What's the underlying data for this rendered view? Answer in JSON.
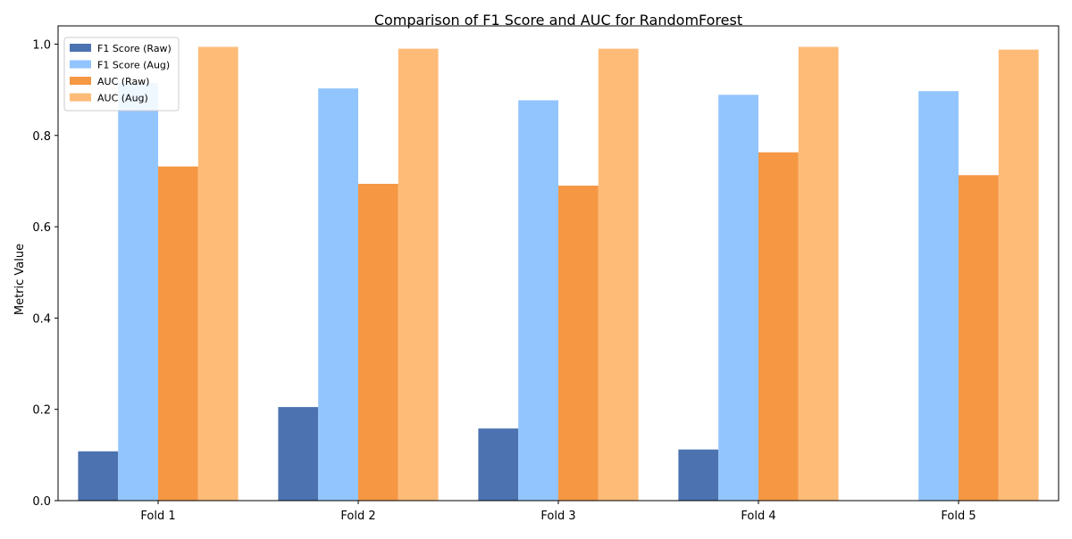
{
  "chart_data": {
    "type": "bar",
    "title": "Comparison of F1 Score and AUC for RandomForest",
    "xlabel": "",
    "ylabel": "Metric Value",
    "categories": [
      "Fold 1",
      "Fold 2",
      "Fold 3",
      "Fold 4",
      "Fold 5"
    ],
    "ylim": [
      0,
      1.04
    ],
    "yticks": [
      "0.0",
      "0.2",
      "0.4",
      "0.6",
      "0.8",
      "1.0"
    ],
    "ytick_values": [
      0.0,
      0.2,
      0.4,
      0.6,
      0.8,
      1.0
    ],
    "grid": false,
    "legend_position": "top-left",
    "series": [
      {
        "name": "F1 Score (Raw)",
        "color": "#4c72b0",
        "values": [
          0.108,
          0.205,
          0.158,
          0.112,
          0.0
        ]
      },
      {
        "name": "F1 Score (Aug)",
        "color": "#92c5fd",
        "values": [
          0.915,
          0.903,
          0.877,
          0.889,
          0.897
        ]
      },
      {
        "name": "AUC (Raw)",
        "color": "#f59743",
        "values": [
          0.732,
          0.694,
          0.69,
          0.763,
          0.713
        ]
      },
      {
        "name": "AUC (Aug)",
        "color": "#febb78",
        "values": [
          0.994,
          0.99,
          0.99,
          0.994,
          0.988
        ]
      }
    ]
  }
}
